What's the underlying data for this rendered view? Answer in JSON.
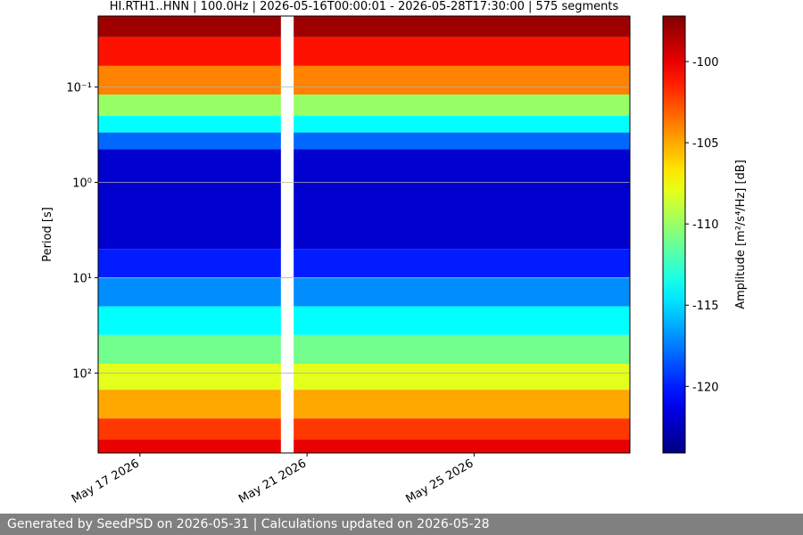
{
  "chart_data": {
    "type": "spectrogram",
    "title": "HI.RTH1..HNN | 100.0Hz | 2026-05-16T00:00:01 - 2026-05-28T17:30:00 | 575 segments",
    "ylabel": "Period [s]",
    "colorbar_label": "Amplitude [m²/s⁴/Hz] [dB]",
    "xlim": [
      "2026-05-16T00:00:01",
      "2026-05-28T17:30:00"
    ],
    "xticks": [
      {
        "value": "2026-05-17T00:00:00",
        "label": "May 17 2026"
      },
      {
        "value": "2026-05-21T00:00:00",
        "label": "May 21 2026"
      },
      {
        "value": "2026-05-25T00:00:00",
        "label": "May 25 2026"
      }
    ],
    "ylim": [
      0.018,
      690
    ],
    "log_y": true,
    "yticks": [
      {
        "value": 0.1,
        "label": "10⁻¹"
      },
      {
        "value": 1,
        "label": "10⁰"
      },
      {
        "value": 10,
        "label": "10¹"
      },
      {
        "value": 100,
        "label": "10²"
      }
    ],
    "grid": true,
    "clim": [
      -124.1,
      -97.2
    ],
    "cticks": [
      -100,
      -105,
      -110,
      -115,
      -120
    ],
    "colormap": "jet",
    "band_edges": [
      0.018,
      0.03,
      0.06,
      0.12,
      0.2,
      0.3,
      0.45,
      5,
      10,
      20,
      40,
      80,
      150,
      300,
      500,
      690
    ],
    "amplitudes": [
      -98,
      -101,
      -104,
      -110,
      -114,
      -118,
      -122,
      -120,
      -117,
      -114,
      -111,
      -108,
      -105,
      -102,
      -100
    ],
    "gap": [
      "2026-05-20T09:00:00",
      "2026-05-20T16:20:00"
    ]
  },
  "footer": "Generated by SeedPSD on 2026-05-31 | Calculations updated on 2026-05-28"
}
